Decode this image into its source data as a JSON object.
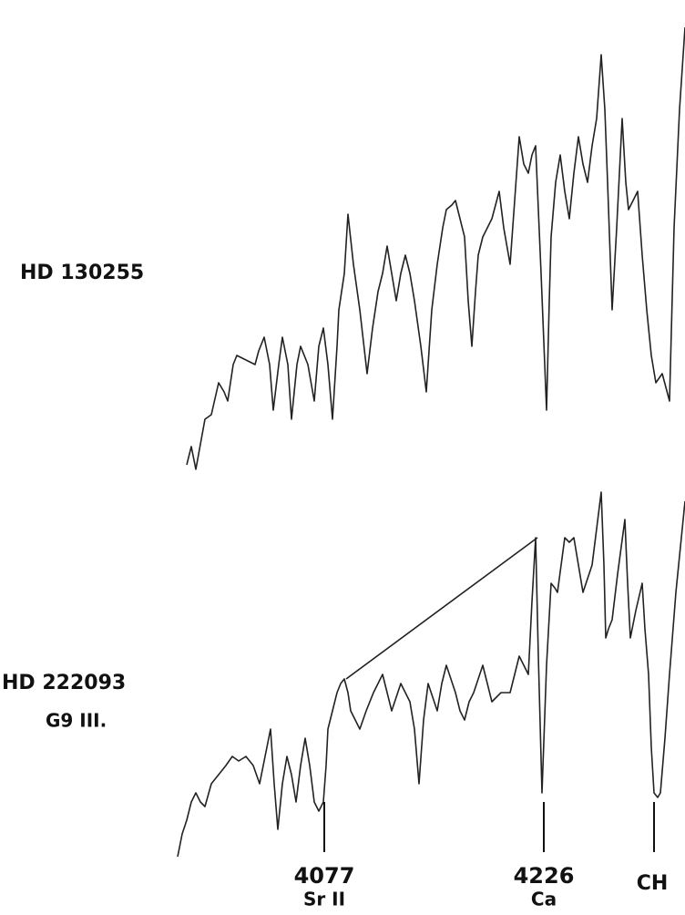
{
  "stars": [
    {
      "name": "HD 130255"
    },
    {
      "name": "HD 222093",
      "spectral_type": "G9 III."
    }
  ],
  "lines": [
    {
      "wavelength": "4077",
      "element": "Sr II"
    },
    {
      "wavelength": "4226",
      "element": "Ca"
    },
    {
      "wavelength": "CH"
    }
  ]
}
